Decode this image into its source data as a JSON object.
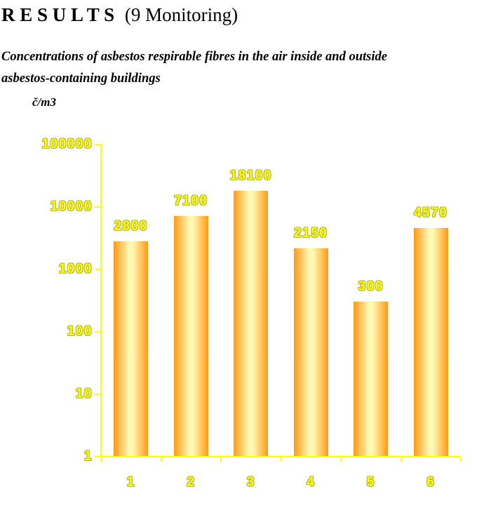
{
  "page": {
    "title_main": "R E S U L T S",
    "title_suffix": "(9 Monitoring)",
    "subtitle_lines": [
      "Concentrations of asbestos respirable fibres in the air inside and outside",
      "asbestos-containing buildings"
    ],
    "y_unit_label": "č/m3"
  },
  "chart_data": {
    "type": "bar",
    "title": "Concentrations of asbestos respirable fibres in the air inside and outside asbestos-containing buildings",
    "categories": [
      "1",
      "2",
      "3",
      "4",
      "5",
      "6"
    ],
    "values": [
      2800,
      7100,
      18100,
      2150,
      300,
      4570
    ],
    "value_labels": [
      "2800",
      "7100",
      "18100",
      "2150",
      "300",
      "4570"
    ],
    "xlabel": "",
    "ylabel": "č/m3",
    "y_scale": "log",
    "ylim": [
      1,
      100000
    ],
    "yticks": [
      1,
      10,
      100,
      1000,
      10000,
      100000
    ],
    "ytick_labels": [
      "1",
      "10",
      "100",
      "1000",
      "10000",
      "100000"
    ],
    "grid": false,
    "legend": false,
    "colors": {
      "bar_edge": "#ff9915",
      "bar_center": "#fff9b4",
      "axis": "#ffff00",
      "label_fill": "#ffff00",
      "label_outline": "#b5b53a"
    }
  }
}
